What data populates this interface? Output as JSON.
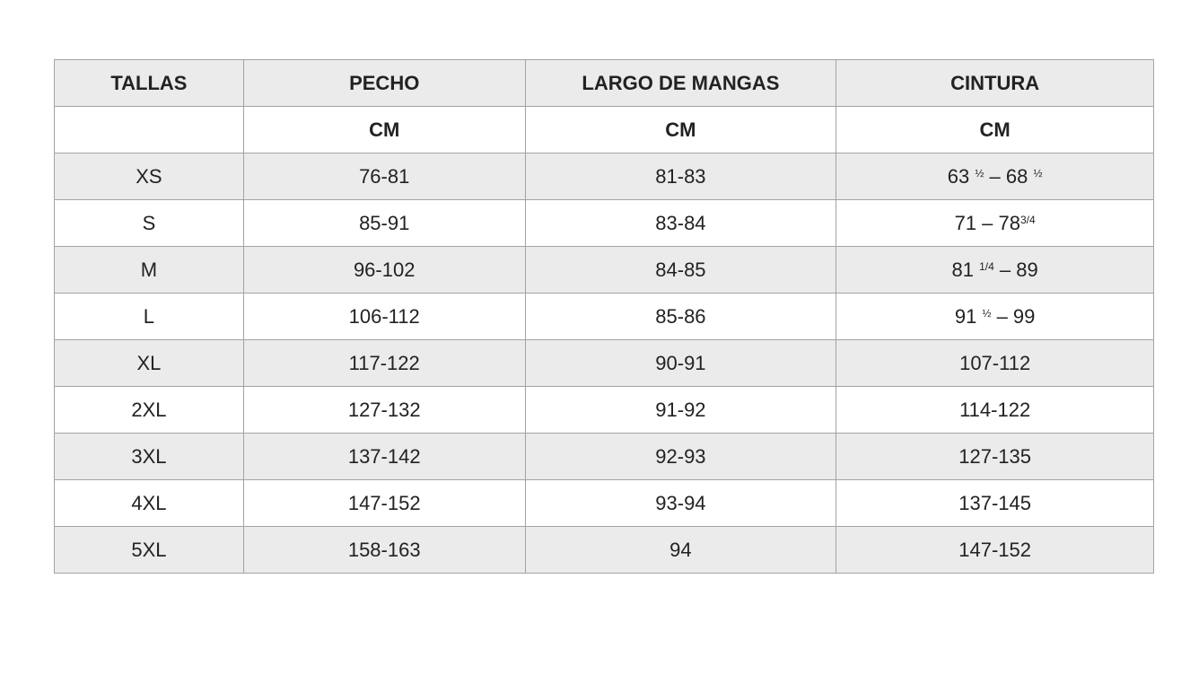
{
  "table": {
    "headers": [
      "TALLAS",
      "PECHO",
      "LARGO DE MANGAS",
      "CINTURA"
    ],
    "units": [
      "",
      "CM",
      "CM",
      "CM"
    ],
    "rows": [
      {
        "size": "XS",
        "pecho": "76-81",
        "mangas": "81-83",
        "cintura": [
          {
            "t": "63 "
          },
          {
            "t": "½",
            "sup": true
          },
          {
            "t": " – 68 "
          },
          {
            "t": "½",
            "sup": true
          }
        ]
      },
      {
        "size": "S",
        "pecho": "85-91",
        "mangas": "83-84",
        "cintura": [
          {
            "t": "71 – 78"
          },
          {
            "t": "3/4",
            "sup": true
          }
        ]
      },
      {
        "size": "M",
        "pecho": "96-102",
        "mangas": "84-85",
        "cintura": [
          {
            "t": "81 "
          },
          {
            "t": "1/4",
            "sup": true
          },
          {
            "t": " – 89"
          }
        ]
      },
      {
        "size": "L",
        "pecho": "106-112",
        "mangas": "85-86",
        "cintura": [
          {
            "t": "91 "
          },
          {
            "t": "½",
            "sup": true
          },
          {
            "t": " – 99"
          }
        ]
      },
      {
        "size": "XL",
        "pecho": "117-122",
        "mangas": "90-91",
        "cintura": [
          {
            "t": "107-112"
          }
        ]
      },
      {
        "size": "2XL",
        "pecho": "127-132",
        "mangas": "91-92",
        "cintura": [
          {
            "t": "114-122"
          }
        ]
      },
      {
        "size": "3XL",
        "pecho": "137-142",
        "mangas": "92-93",
        "cintura": [
          {
            "t": "127-135"
          }
        ]
      },
      {
        "size": "4XL",
        "pecho": "147-152",
        "mangas": "93-94",
        "cintura": [
          {
            "t": "137-145"
          }
        ]
      },
      {
        "size": "5XL",
        "pecho": "158-163",
        "mangas": "94",
        "cintura": [
          {
            "t": "147-152"
          }
        ]
      }
    ],
    "colors": {
      "stripe": "#ebebeb",
      "border": "#a3a3a3",
      "text": "#222222"
    }
  }
}
